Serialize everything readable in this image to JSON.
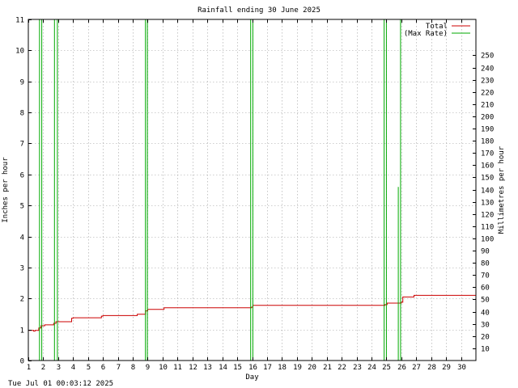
{
  "chart_data": {
    "type": "line",
    "title": "Rainfall ending 30 June 2025",
    "xlabel": "Day",
    "ylabel": "Inches per hour",
    "y2label": "Millimetres per hour",
    "xlim": [
      1,
      31
    ],
    "ylim": [
      0,
      11
    ],
    "y2lim": [
      0,
      279.4
    ],
    "xticks": [
      "1",
      "2",
      "3",
      "4",
      "5",
      "6",
      "7",
      "8",
      "9",
      "10",
      "11",
      "12",
      "13",
      "14",
      "15",
      "16",
      "17",
      "18",
      "19",
      "20",
      "21",
      "22",
      "23",
      "24",
      "25",
      "26",
      "27",
      "28",
      "29",
      "30"
    ],
    "yticks": [
      "0",
      "1",
      "2",
      "3",
      "4",
      "5",
      "6",
      "7",
      "8",
      "9",
      "10",
      "11"
    ],
    "y2ticks": [
      "10",
      "20",
      "30",
      "40",
      "50",
      "60",
      "70",
      "80",
      "90",
      "100",
      "110",
      "120",
      "130",
      "140",
      "150",
      "160",
      "170",
      "180",
      "190",
      "200",
      "210",
      "220",
      "230",
      "240",
      "250"
    ],
    "grid": true,
    "legend_position": "top-right",
    "series": [
      {
        "name": "Total",
        "color": "#cc0000",
        "style": "step",
        "x": [
          1.0,
          1.35,
          1.45,
          1.7,
          1.85,
          2.1,
          2.7,
          2.85,
          3.0,
          3.9,
          4.0,
          5.9,
          6.0,
          8.3,
          8.85,
          9.0,
          9.95,
          10.1,
          15.95,
          16.05,
          24.9,
          25.05,
          26.0,
          26.1,
          26.85,
          31.0
        ],
        "y": [
          0.97,
          0.95,
          0.97,
          1.05,
          1.12,
          1.15,
          1.2,
          1.25,
          1.25,
          1.36,
          1.38,
          1.43,
          1.45,
          1.49,
          1.6,
          1.65,
          1.65,
          1.7,
          1.72,
          1.78,
          1.8,
          1.85,
          1.88,
          2.05,
          2.1,
          2.1
        ]
      },
      {
        "name": "(Max Rate)",
        "color": "#00aa00",
        "style": "spike",
        "x": [
          1.75,
          1.9,
          2.75,
          2.95,
          8.85,
          8.98,
          15.9,
          16.05,
          24.85,
          25.0,
          25.8,
          25.95
        ],
        "y": [
          11,
          11,
          11,
          11,
          11,
          11,
          11,
          11,
          11,
          11,
          5.6,
          11
        ]
      }
    ],
    "footer_timestamp": "Tue Jul 01 00:03:12 2025"
  }
}
